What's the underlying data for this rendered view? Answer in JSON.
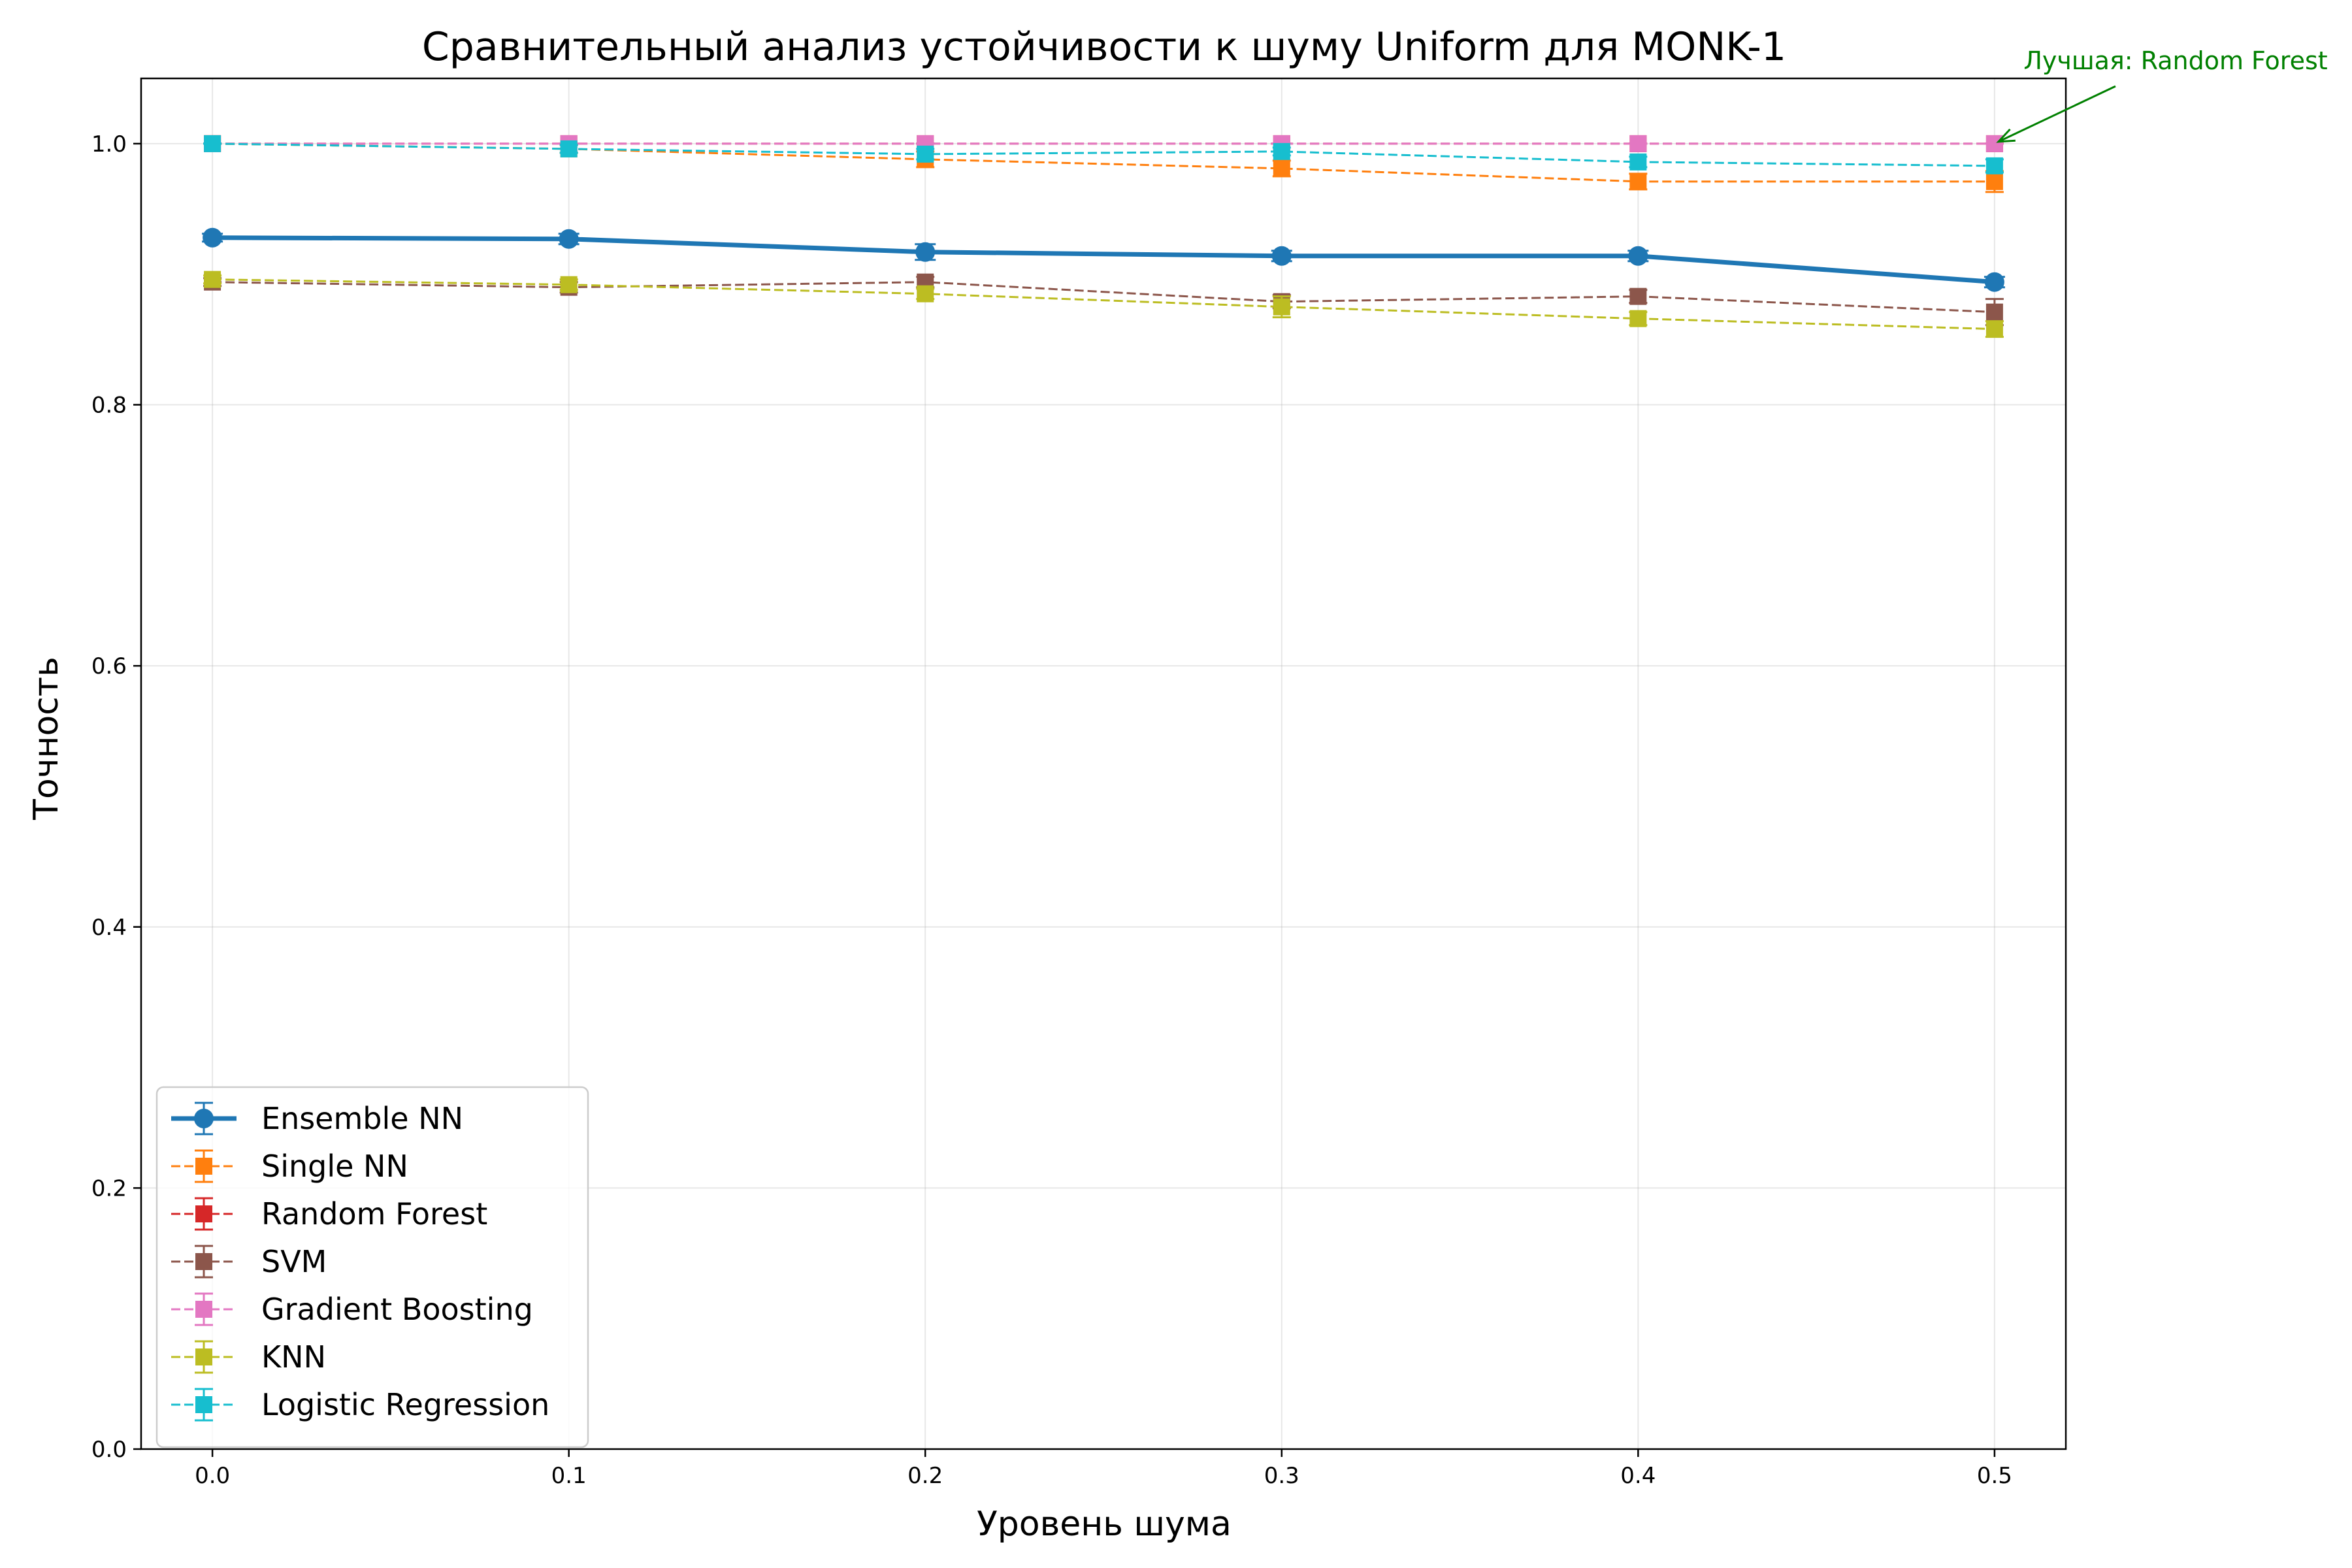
{
  "chart_data": {
    "type": "line",
    "title": "Сравнительный анализ устойчивости к шуму Uniform для MONK-1",
    "xlabel": "Уровень шума",
    "ylabel": "Точность",
    "x": [
      0.0,
      0.1,
      0.2,
      0.3,
      0.4,
      0.5
    ],
    "x_ticks": [
      "0.0",
      "0.1",
      "0.2",
      "0.3",
      "0.4",
      "0.5"
    ],
    "y_ticks": [
      "0.0",
      "0.2",
      "0.4",
      "0.6",
      "0.8",
      "1.0"
    ],
    "xlim": [
      -0.02,
      0.52
    ],
    "ylim": [
      0.0,
      1.05
    ],
    "grid": true,
    "legend_position": "lower-left",
    "series": [
      {
        "name": "Ensemble NN",
        "color": "#1f77b4",
        "style": "solid",
        "marker": "circle",
        "values": [
          0.928,
          0.927,
          0.917,
          0.914,
          0.914,
          0.894
        ],
        "errors": [
          0.003,
          0.004,
          0.006,
          0.004,
          0.004,
          0.004
        ]
      },
      {
        "name": "Single NN",
        "color": "#ff7f0e",
        "style": "dashed",
        "marker": "square",
        "values": [
          1.0,
          0.996,
          0.988,
          0.981,
          0.971,
          0.971
        ],
        "errors": [
          0.0,
          0.003,
          0.006,
          0.006,
          0.006,
          0.008
        ]
      },
      {
        "name": "Random Forest",
        "color": "#d62728",
        "style": "dashed",
        "marker": "square",
        "values": [
          1.0,
          1.0,
          1.0,
          1.0,
          1.0,
          1.0
        ],
        "errors": [
          0.0,
          0.0,
          0.0,
          0.0,
          0.0,
          0.0
        ]
      },
      {
        "name": "SVM",
        "color": "#8c564b",
        "style": "dashed",
        "marker": "square",
        "values": [
          0.894,
          0.89,
          0.894,
          0.879,
          0.883,
          0.871
        ],
        "errors": [
          0.003,
          0.004,
          0.004,
          0.005,
          0.005,
          0.01
        ]
      },
      {
        "name": "Gradient Boosting",
        "color": "#e377c2",
        "style": "dashed",
        "marker": "square",
        "values": [
          1.0,
          1.0,
          1.0,
          1.0,
          1.0,
          1.0
        ],
        "errors": [
          0.0,
          0.0,
          0.0,
          0.0,
          0.0,
          0.0
        ]
      },
      {
        "name": "KNN",
        "color": "#bcbd22",
        "style": "dashed",
        "marker": "square",
        "values": [
          0.896,
          0.892,
          0.885,
          0.875,
          0.866,
          0.858
        ],
        "errors": [
          0.003,
          0.004,
          0.004,
          0.008,
          0.005,
          0.006
        ]
      },
      {
        "name": "Logistic Regression",
        "color": "#17becf",
        "style": "dashed",
        "marker": "square",
        "values": [
          1.0,
          0.996,
          0.992,
          0.994,
          0.986,
          0.983
        ],
        "errors": [
          0.0,
          0.003,
          0.004,
          0.003,
          0.004,
          0.005
        ]
      }
    ],
    "annotation": {
      "text": "Лучшая: Random Forest",
      "color": "#008000",
      "x": 0.5,
      "y": 1.0
    }
  }
}
